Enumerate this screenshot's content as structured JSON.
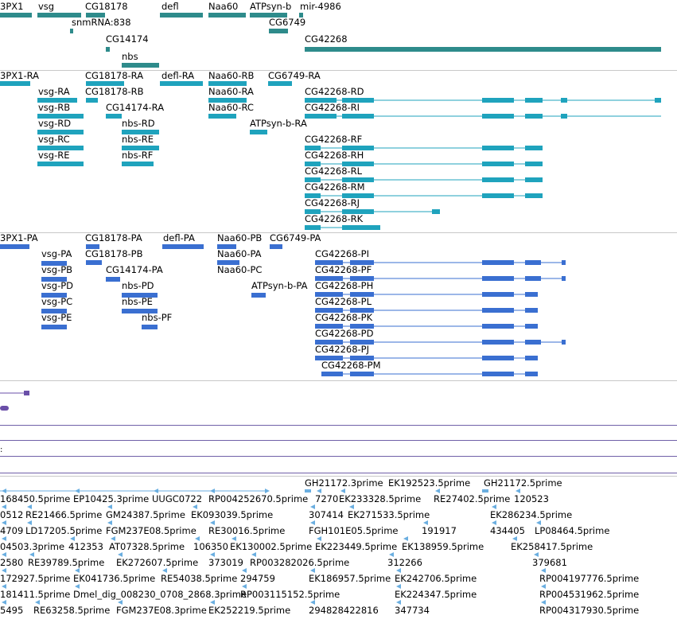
{
  "colors": {
    "gene": "#2e8b8b",
    "transcript": "#1fa3bd",
    "protein": "#3a6fd1",
    "purple": "#6a4fa8",
    "est": "#6aaee0",
    "divider": "#c8c8c8",
    "purple_line": "#7060a8"
  },
  "icons": {
    "arrow_left": "left-arrow-icon",
    "arrow_right": "right-arrow-icon"
  },
  "gene_track": {
    "labels": [
      "3PX1",
      "vsg",
      "CG18178",
      "defl",
      "Naa60",
      "ATPsyn-b",
      "mir-4986",
      "snmRNA:838",
      "CG6749",
      "CG14174",
      "CG42268",
      "nbs"
    ]
  },
  "transcript_track": {
    "labels": [
      "3PX1-RA",
      "CG18178-RA",
      "defl-RA",
      "Naa60-RB",
      "CG6749-RA",
      "vsg-RA",
      "CG18178-RB",
      "Naa60-RA",
      "CG42268-RD",
      "vsg-RB",
      "CG14174-RA",
      "Naa60-RC",
      "CG42268-RI",
      "vsg-RD",
      "nbs-RD",
      "ATPsyn-b-RA",
      "vsg-RC",
      "nbs-RE",
      "CG42268-RF",
      "vsg-RE",
      "nbs-RF",
      "CG42268-RH",
      "CG42268-RL",
      "CG42268-RM",
      "CG42268-RJ",
      "CG42268-RK"
    ]
  },
  "protein_track": {
    "labels": [
      "3PX1-PA",
      "CG18178-PA",
      "defl-PA",
      "Naa60-PB",
      "CG6749-PA",
      "vsg-PA",
      "CG18178-PB",
      "Naa60-PA",
      "CG42268-PI",
      "vsg-PB",
      "CG14174-PA",
      "Naa60-PC",
      "CG42268-PF",
      "vsg-PD",
      "nbs-PD",
      "ATPsyn-b-PA",
      "CG42268-PH",
      "vsg-PC",
      "nbs-PE",
      "CG42268-PL",
      "vsg-PE",
      "nbs-PF",
      "CG42268-PK",
      "CG42268-PD",
      "CG42268-PJ",
      "CG42268-PM"
    ]
  },
  "est_track": {
    "labels": [
      "GH21172.3prime",
      "EK192523.5prime",
      "GH21172.5prime",
      "168450.5prime",
      "EP10425.3prime",
      "UUGC0722",
      "RP004252670.5prime",
      "7270",
      "EK233328.5prime",
      "RE27402.5prime",
      "120523",
      "0512",
      "RE21466.5prime",
      "GM24387.5prime",
      "EK093039.5prime",
      "307414",
      "EK271533.5prime",
      "EK286234.5prime",
      "4709",
      "LD17205.5prime",
      "FGM237E08.5prime",
      "RE30016.5prime",
      "FGH101E05.5prime",
      "191917",
      "434405",
      "LP08464.5prime",
      "04503.3prime",
      "412353",
      "AT07328.5prime",
      "106350",
      "EK130002.5prime",
      "EK223449.5prime",
      "EK138959.5prime",
      "EK258417.5prime",
      "2580",
      "RE39789.5prime",
      "EK272607.5prime",
      "373019",
      "RP003282026.5prime",
      "312266",
      "379681",
      "172927.5prime",
      "EK041736.5prime",
      "RE54038.5prime",
      "294759",
      "EK186957.5prime",
      "EK242706.5prime",
      "RP004197776.5prime",
      "181411.5prime",
      "Dmel_dig_008230_0708_2868.3prime",
      "RP003115152.5prime",
      "EK224347.5prime",
      "RP004531962.5prime",
      "5495",
      "RE63258.5prime",
      "FGM237E08.3prime",
      "EK252219.5prime",
      "294828422816",
      "347734",
      "RP004317930.5prime"
    ]
  }
}
